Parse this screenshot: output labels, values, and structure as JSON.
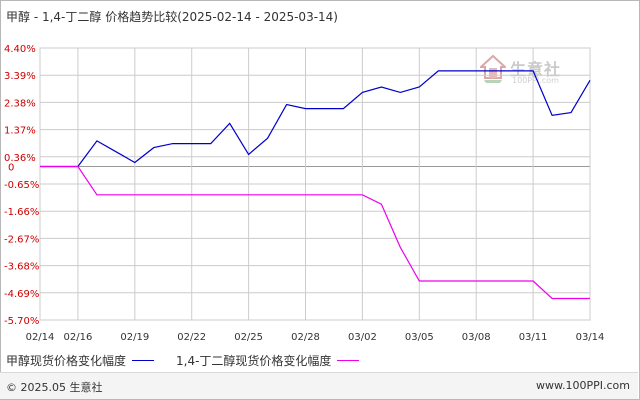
{
  "title": "甲醇 - 1,4-丁二醇 价格趋势比较(2025-02-14 - 2025-03-14)",
  "footer": {
    "copyright": "© 2025.05 生意社",
    "url": "www.100PPI.com"
  },
  "watermark": {
    "name": "生意社",
    "url": "100PPI.com"
  },
  "colors": {
    "series1": "#0000cc",
    "series2": "#ee00ee",
    "grid": "#cccccc",
    "axis_label": "#cc0000",
    "zero_line": "#999999"
  },
  "chart_data": {
    "type": "line",
    "ylim": [
      -5.7,
      4.4
    ],
    "y_ticks": [
      "4.40%",
      "3.39%",
      "2.38%",
      "1.37%",
      "0.36%",
      "0",
      "-0.65%",
      "-1.66%",
      "-2.67%",
      "-3.68%",
      "-4.69%",
      "-5.70%"
    ],
    "y_tick_values": [
      4.4,
      3.39,
      2.38,
      1.37,
      0.36,
      0,
      -0.65,
      -1.66,
      -2.67,
      -3.68,
      -4.69,
      -5.7
    ],
    "x_ticks": [
      "02/14",
      "02/16",
      "02/19",
      "02/22",
      "02/25",
      "02/28",
      "03/02",
      "03/05",
      "03/08",
      "03/11",
      "03/14"
    ],
    "x_tick_days": [
      0,
      2,
      5,
      8,
      11,
      14,
      17,
      20,
      23,
      26,
      29
    ],
    "grid": true,
    "series": [
      {
        "name": "甲醇现货价格变化幅度",
        "days": [
          0,
          1,
          2,
          3,
          4,
          5,
          6,
          7,
          8,
          9,
          10,
          11,
          12,
          13,
          14,
          15,
          16,
          17,
          18,
          19,
          20,
          21,
          22,
          23,
          24,
          25,
          26,
          27,
          28,
          29
        ],
        "values": [
          0,
          0,
          0,
          0.95,
          0.55,
          0.15,
          0.7,
          0.85,
          0.85,
          0.85,
          1.6,
          0.45,
          1.05,
          2.3,
          2.15,
          2.15,
          2.15,
          2.75,
          2.95,
          2.75,
          2.95,
          3.55,
          3.55,
          3.55,
          3.55,
          3.55,
          3.55,
          1.9,
          2.0,
          3.2
        ]
      },
      {
        "name": "1,4-丁二醇现货价格变化幅度",
        "days": [
          0,
          1,
          2,
          3,
          4,
          5,
          6,
          7,
          8,
          9,
          10,
          11,
          12,
          13,
          14,
          15,
          16,
          17,
          18,
          19,
          20,
          21,
          22,
          23,
          24,
          25,
          26,
          27,
          28,
          29
        ],
        "values": [
          0,
          0,
          0,
          -1.05,
          -1.05,
          -1.05,
          -1.05,
          -1.05,
          -1.05,
          -1.05,
          -1.05,
          -1.05,
          -1.05,
          -1.05,
          -1.05,
          -1.05,
          -1.05,
          -1.05,
          -1.4,
          -3.0,
          -4.25,
          -4.25,
          -4.25,
          -4.25,
          -4.25,
          -4.25,
          -4.25,
          -4.9,
          -4.9,
          -4.9
        ]
      }
    ]
  }
}
